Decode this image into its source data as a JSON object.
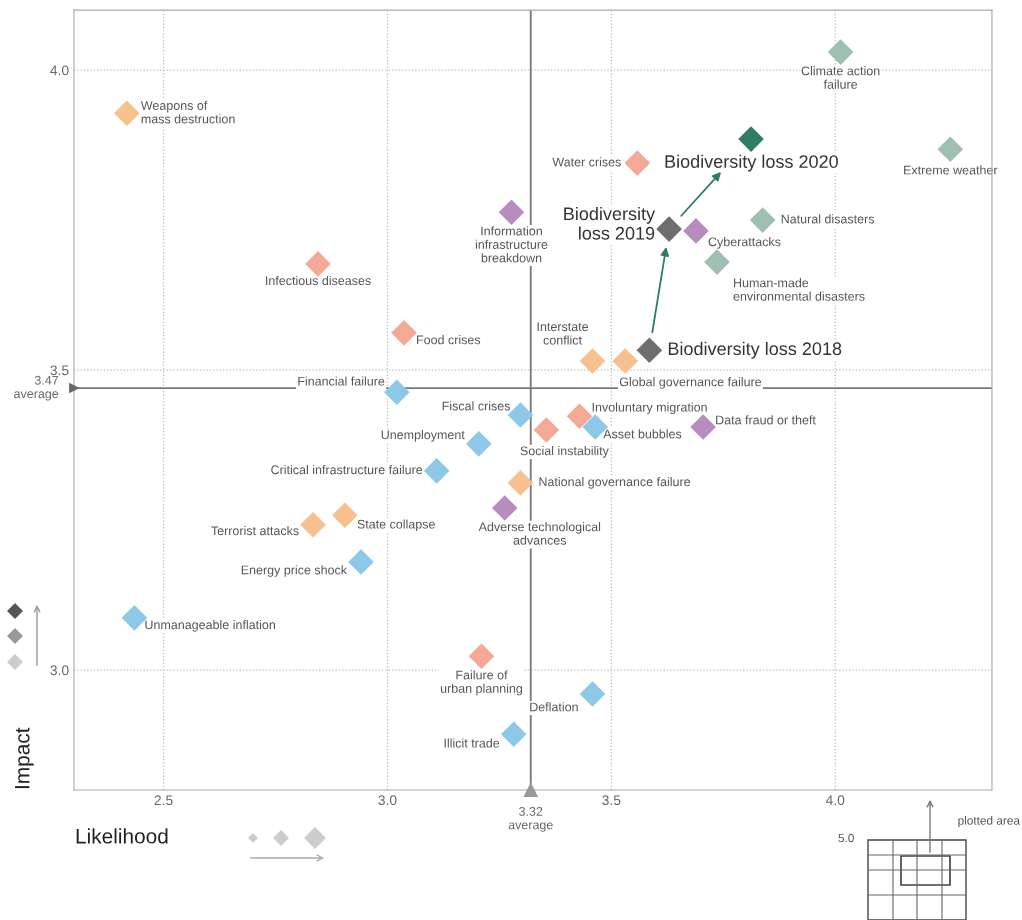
{
  "chart_data": {
    "type": "scatter",
    "xlabel": "Likelihood",
    "ylabel": "Impact",
    "xlim": [
      2.3,
      4.35
    ],
    "ylim": [
      2.8,
      4.1
    ],
    "xticks": [
      {
        "value": 2.5,
        "label": "2.5"
      },
      {
        "value": 3.0,
        "label": "3.0"
      },
      {
        "value": 3.5,
        "label": "3.5"
      },
      {
        "value": 4.0,
        "label": "4.0"
      }
    ],
    "yticks": [
      {
        "value": 3.0,
        "label": "3.0"
      },
      {
        "value": 3.5,
        "label": "3.5"
      },
      {
        "value": 4.0,
        "label": "4.0"
      }
    ],
    "grid": true,
    "marker": "diamond",
    "ref_lines": [
      {
        "axis": "x",
        "value": 3.32,
        "label": "3.32\naverage",
        "color": "#777777"
      },
      {
        "axis": "y",
        "value": 3.47,
        "label": "3.47\naverage",
        "color": "#777777"
      }
    ],
    "series": [
      {
        "color": "#8ec8e8",
        "x": [
          3.021,
          3.297,
          3.204,
          3.464,
          3.11,
          2.941,
          2.435,
          3.458,
          3.282
        ],
        "values": [
          3.463,
          3.425,
          3.377,
          3.405,
          3.332,
          3.18,
          3.087,
          2.96,
          2.893
        ]
      },
      {
        "color": "#f6c08f",
        "x": [
          2.418,
          3.297,
          2.834,
          2.905,
          3.458,
          3.531
        ],
        "values": [
          3.928,
          3.312,
          3.242,
          3.258,
          3.515,
          3.515
        ]
      },
      {
        "color": "#f4a896",
        "x": [
          2.845,
          3.037,
          3.355,
          3.429,
          3.21,
          3.558
        ],
        "values": [
          3.677,
          3.562,
          3.4,
          3.423,
          3.023,
          3.845
        ]
      },
      {
        "color": "#b98cc0",
        "x": [
          3.277,
          3.705,
          3.262,
          3.689
        ],
        "values": [
          3.763,
          3.405,
          3.27,
          3.732
        ]
      },
      {
        "color": "#9fbfb0",
        "x": [
          4.012,
          4.257,
          3.838,
          3.736
        ],
        "values": [
          4.03,
          3.868,
          3.75,
          3.68
        ]
      },
      {
        "colors": [
          "#6d6e70",
          "#6d6e70",
          "#2e7d64"
        ],
        "x": [
          3.585,
          3.629,
          3.812
        ],
        "values": [
          3.533,
          3.735,
          3.885
        ]
      }
    ],
    "annotations": [
      {
        "text": "Weapons of\nmass destruction",
        "x": 2.418,
        "y": 3.928
      },
      {
        "text": "Infectious diseases",
        "x": 2.845,
        "y": 3.677
      },
      {
        "text": "Information\ninfrastructure\nbreakdown",
        "x": 3.277,
        "y": 3.763
      },
      {
        "text": "Food crises",
        "x": 3.037,
        "y": 3.562
      },
      {
        "text": "Financial failure",
        "x": 3.021,
        "y": 3.463
      },
      {
        "text": "Fiscal crises",
        "x": 3.297,
        "y": 3.425
      },
      {
        "text": "Unemployment",
        "x": 3.204,
        "y": 3.377
      },
      {
        "text": "Social instability",
        "x": 3.355,
        "y": 3.4
      },
      {
        "text": "Involuntary migration",
        "x": 3.429,
        "y": 3.423
      },
      {
        "text": "Asset bubbles",
        "x": 3.464,
        "y": 3.405
      },
      {
        "text": "Data fraud or theft",
        "x": 3.705,
        "y": 3.405
      },
      {
        "text": "Critical infrastructure failure",
        "x": 3.11,
        "y": 3.332
      },
      {
        "text": "National governance failure",
        "x": 3.297,
        "y": 3.312
      },
      {
        "text": "Adverse technological\nadvances",
        "x": 3.262,
        "y": 3.27
      },
      {
        "text": "Terrorist attacks",
        "x": 2.834,
        "y": 3.242
      },
      {
        "text": "State collapse",
        "x": 2.905,
        "y": 3.258
      },
      {
        "text": "Energy price shock",
        "x": 2.941,
        "y": 3.18
      },
      {
        "text": "Unmanageable inflation",
        "x": 2.435,
        "y": 3.087
      },
      {
        "text": "Failure of\nurban planning",
        "x": 3.21,
        "y": 3.023
      },
      {
        "text": "Deflation",
        "x": 3.458,
        "y": 2.96
      },
      {
        "text": "Illicit trade",
        "x": 3.282,
        "y": 2.893
      },
      {
        "text": "Water crises",
        "x": 3.558,
        "y": 3.845
      },
      {
        "text": "Interstate\nconflict",
        "x": 3.458,
        "y": 3.515
      },
      {
        "text": "Global governance failure",
        "x": 3.531,
        "y": 3.515
      },
      {
        "text": "Biodiversity loss 2018",
        "x": 3.585,
        "y": 3.533
      },
      {
        "text": "Biodiversity\nloss 2019",
        "x": 3.629,
        "y": 3.735
      },
      {
        "text": "Biodiversity loss 2020",
        "x": 3.812,
        "y": 3.885
      },
      {
        "text": "Cyberattacks",
        "x": 3.689,
        "y": 3.732
      },
      {
        "text": "Climate action\nfailure",
        "x": 4.012,
        "y": 4.03
      },
      {
        "text": "Extreme weather",
        "x": 4.257,
        "y": 3.868
      },
      {
        "text": "Natural disasters",
        "x": 3.838,
        "y": 3.75
      },
      {
        "text": "Human-made\nenvironmental disasters",
        "x": 3.736,
        "y": 3.68
      },
      "5.0",
      "plotted area"
    ]
  }
}
